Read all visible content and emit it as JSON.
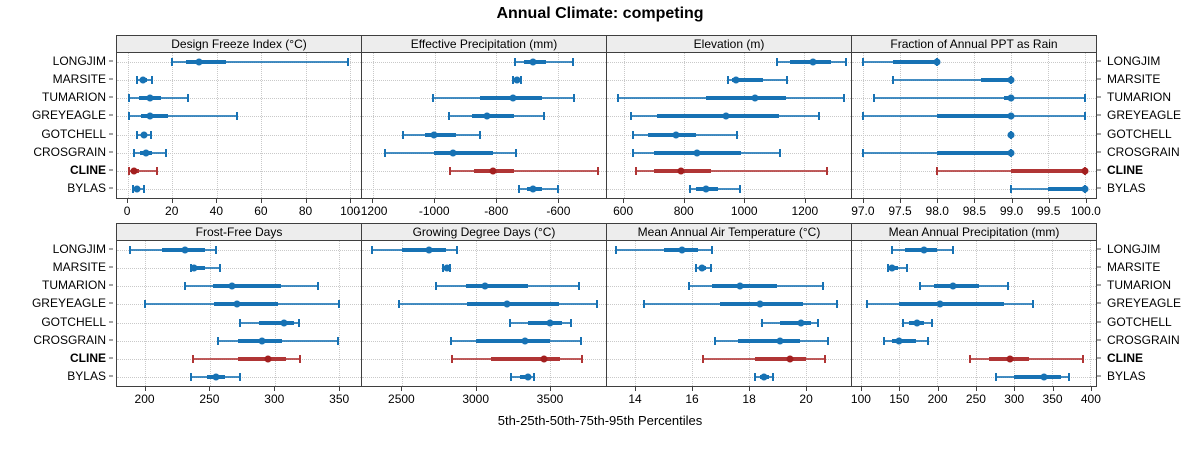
{
  "title": "Annual Climate: competing",
  "caption": "5th-25th-50th-75th-95th Percentiles",
  "sites": [
    "LONGJIM",
    "MARSITE",
    "TUMARION",
    "GREYEAGLE",
    "GOTCHELL",
    "CROSGRAIN",
    "CLINE",
    "BYLAS"
  ],
  "highlight_site": "CLINE",
  "colors": {
    "blue": "#1772b4",
    "red": "#b03535",
    "red_dot": "#a31f1f",
    "strip_bg": "#ededed",
    "grid": "#c9c9c9",
    "border": "#3f3f3f"
  },
  "chart_data": {
    "type": "dotplot-percentiles",
    "percentiles": [
      5,
      25,
      50,
      75,
      95
    ],
    "layout": {
      "rows": 2,
      "cols": 4
    },
    "legend": "none",
    "grid": "dotted",
    "panels": [
      {
        "title": "Design Freeze Index (°C)",
        "row": 0,
        "col": 0,
        "domain": [
          -5,
          105
        ],
        "ticks": [
          0,
          20,
          40,
          60,
          80,
          100
        ],
        "tick_labels": [
          "0",
          "20",
          "40",
          "60",
          "80",
          "100"
        ],
        "values": {
          "LONGJIM": [
            20,
            26,
            32,
            44,
            99
          ],
          "MARSITE": [
            4,
            5.5,
            6.5,
            8.5,
            11
          ],
          "TUMARION": [
            0.5,
            5,
            10,
            15,
            27
          ],
          "GREYEAGLE": [
            0.5,
            6,
            10,
            18,
            49
          ],
          "GOTCHELL": [
            4,
            6,
            7,
            8.5,
            10.5
          ],
          "CROSGRAIN": [
            2.5,
            5.5,
            8,
            11,
            17
          ],
          "CLINE": [
            0.5,
            1.5,
            2.5,
            5,
            13
          ],
          "BYLAS": [
            2,
            3,
            4,
            5.5,
            7
          ]
        }
      },
      {
        "title": "Effective Precipitation (mm)",
        "row": 0,
        "col": 1,
        "domain": [
          -1235,
          -445
        ],
        "ticks": [
          -1200,
          -1000,
          -800,
          -600
        ],
        "tick_labels": [
          "-1200",
          "-1000",
          "-800",
          "-600"
        ],
        "values": {
          "LONGJIM": [
            -740,
            -712,
            -680,
            -640,
            -552
          ],
          "MARSITE": [
            -745,
            -738,
            -732,
            -727,
            -720
          ],
          "TUMARION": [
            -1005,
            -852,
            -745,
            -652,
            -548
          ],
          "GREYEAGLE": [
            -952,
            -880,
            -830,
            -742,
            -645
          ],
          "GOTCHELL": [
            -1102,
            -1030,
            -1002,
            -932,
            -852
          ],
          "CROSGRAIN": [
            -1162,
            -1002,
            -940,
            -812,
            -737
          ],
          "CLINE": [
            -950,
            -872,
            -812,
            -742,
            -472
          ],
          "BYLAS": [
            -727,
            -700,
            -682,
            -652,
            -602
          ]
        }
      },
      {
        "title": "Elevation (m)",
        "row": 0,
        "col": 2,
        "domain": [
          545,
          1355
        ],
        "ticks": [
          600,
          800,
          1000,
          1200
        ],
        "tick_labels": [
          "600",
          "800",
          "1000",
          "1200"
        ],
        "values": {
          "LONGJIM": [
            1108,
            1152,
            1230,
            1288,
            1340
          ],
          "MARSITE": [
            948,
            960,
            972,
            1062,
            1142
          ],
          "TUMARION": [
            582,
            872,
            1035,
            1140,
            1332
          ],
          "GREYEAGLE": [
            625,
            712,
            940,
            1115,
            1250
          ],
          "GOTCHELL": [
            630,
            682,
            775,
            842,
            975
          ],
          "CROSGRAIN": [
            632,
            702,
            845,
            990,
            1120
          ],
          "CLINE": [
            640,
            700,
            790,
            890,
            1275
          ],
          "BYLAS": [
            820,
            842,
            875,
            912,
            985
          ]
        }
      },
      {
        "title": "Fraction of Annual PPT as Rain",
        "row": 0,
        "col": 3,
        "domain": [
          96.85,
          100.15
        ],
        "ticks": [
          97.0,
          97.5,
          98.0,
          98.5,
          99.0,
          99.5,
          100.0
        ],
        "tick_labels": [
          "97.0",
          "97.5",
          "98.0",
          "98.5",
          "99.0",
          "99.5",
          "100.0"
        ],
        "values": {
          "LONGJIM": [
            97.0,
            97.4,
            98.0,
            98.0,
            98.0
          ],
          "MARSITE": [
            97.4,
            98.6,
            99.0,
            99.0,
            99.0
          ],
          "TUMARION": [
            97.15,
            98.9,
            99.0,
            99.0,
            100.0
          ],
          "GREYEAGLE": [
            97.0,
            98.0,
            99.0,
            99.0,
            100.0
          ],
          "GOTCHELL": [
            99.0,
            99.0,
            99.0,
            99.0,
            99.0
          ],
          "CROSGRAIN": [
            97.0,
            98.0,
            99.0,
            99.0,
            99.0
          ],
          "CLINE": [
            98.0,
            99.0,
            100.0,
            100.0,
            100.0
          ],
          "BYLAS": [
            99.0,
            99.5,
            100.0,
            100.0,
            100.0
          ]
        }
      },
      {
        "title": "Frost-Free Days",
        "row": 1,
        "col": 0,
        "domain": [
          178,
          367
        ],
        "ticks": [
          200,
          250,
          300,
          350
        ],
        "tick_labels": [
          "200",
          "250",
          "300",
          "350"
        ],
        "values": {
          "LONGJIM": [
            188,
            213,
            231,
            246,
            255
          ],
          "MARSITE": [
            235,
            236,
            238,
            246,
            258
          ],
          "TUMARION": [
            231,
            252,
            267,
            305,
            334
          ],
          "GREYEAGLE": [
            200,
            253,
            271,
            303,
            350
          ],
          "GOTCHELL": [
            273,
            288,
            307,
            315,
            319
          ],
          "CROSGRAIN": [
            256,
            272,
            290,
            306,
            349
          ],
          "CLINE": [
            237,
            272,
            295,
            309,
            320
          ],
          "BYLAS": [
            235,
            248,
            255,
            262,
            273
          ]
        }
      },
      {
        "title": "Growing Degree Days (°C)",
        "row": 1,
        "col": 1,
        "domain": [
          2230,
          3880
        ],
        "ticks": [
          2500,
          3000,
          3500
        ],
        "tick_labels": [
          "2500",
          "3000",
          "3500"
        ],
        "values": {
          "LONGJIM": [
            2300,
            2500,
            2680,
            2800,
            2870
          ],
          "MARSITE": [
            2780,
            2792,
            2802,
            2812,
            2822
          ],
          "TUMARION": [
            2730,
            2930,
            3060,
            3350,
            3700
          ],
          "GREYEAGLE": [
            2480,
            2940,
            3210,
            3560,
            3820
          ],
          "GOTCHELL": [
            3230,
            3350,
            3500,
            3580,
            3640
          ],
          "CROSGRAIN": [
            2830,
            3000,
            3330,
            3500,
            3710
          ],
          "CLINE": [
            2840,
            3100,
            3460,
            3570,
            3720
          ],
          "BYLAS": [
            3240,
            3300,
            3350,
            3375,
            3395
          ]
        }
      },
      {
        "title": "Mean Annual Air Temperature (°C)",
        "row": 1,
        "col": 2,
        "domain": [
          13.0,
          21.6
        ],
        "ticks": [
          14,
          16,
          18,
          20
        ],
        "tick_labels": [
          "14",
          "16",
          "18",
          "20"
        ],
        "values": {
          "LONGJIM": [
            13.3,
            15.0,
            15.65,
            16.2,
            16.7
          ],
          "MARSITE": [
            16.15,
            16.25,
            16.35,
            16.5,
            16.65
          ],
          "TUMARION": [
            15.9,
            16.7,
            17.7,
            19.0,
            20.6
          ],
          "GREYEAGLE": [
            14.3,
            17.0,
            18.4,
            19.9,
            21.1
          ],
          "GOTCHELL": [
            18.45,
            19.1,
            19.85,
            20.2,
            20.45
          ],
          "CROSGRAIN": [
            16.8,
            17.6,
            19.1,
            19.8,
            20.8
          ],
          "CLINE": [
            16.4,
            18.2,
            19.45,
            20.0,
            20.7
          ],
          "BYLAS": [
            18.2,
            18.4,
            18.55,
            18.7,
            18.85
          ]
        }
      },
      {
        "title": "Mean Annual Precipitation (mm)",
        "row": 1,
        "col": 3,
        "domain": [
          88,
          408
        ],
        "ticks": [
          100,
          150,
          200,
          250,
          300,
          350,
          400
        ],
        "tick_labels": [
          "100",
          "150",
          "200",
          "250",
          "300",
          "350",
          "400"
        ],
        "values": {
          "LONGJIM": [
            140,
            158,
            183,
            200,
            220
          ],
          "MARSITE": [
            135,
            137,
            140,
            148,
            160
          ],
          "TUMARION": [
            177,
            195,
            221,
            255,
            293
          ],
          "GREYEAGLE": [
            108,
            150,
            203,
            288,
            326
          ],
          "GOTCHELL": [
            155,
            163,
            173,
            183,
            193
          ],
          "CROSGRAIN": [
            130,
            140,
            150,
            172,
            188
          ],
          "CLINE": [
            243,
            268,
            295,
            320,
            391
          ],
          "BYLAS": [
            277,
            300,
            340,
            362,
            373
          ]
        }
      }
    ]
  }
}
